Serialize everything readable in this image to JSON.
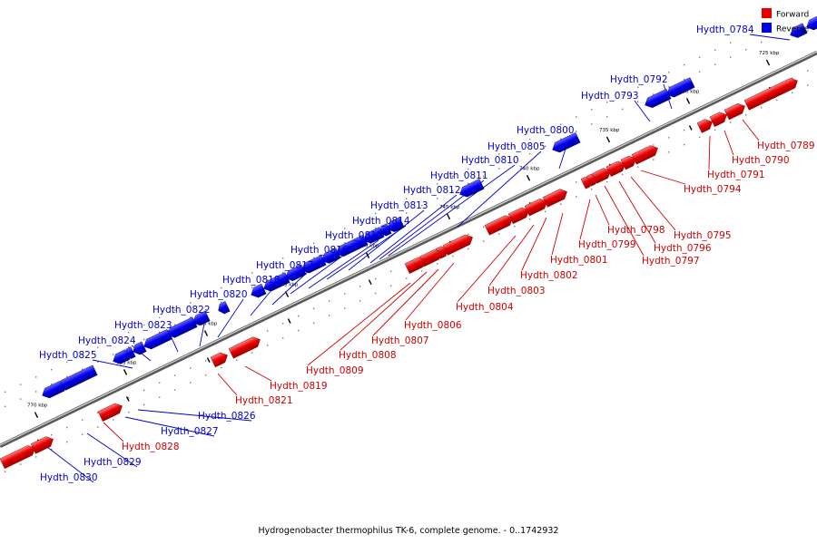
{
  "caption": "Hydrogenobacter thermophilus TK-6, complete genome. - 0..1742932",
  "legend": {
    "forward": {
      "label": "Forward",
      "color": "#e60000"
    },
    "reverse": {
      "label": "Reverse",
      "color": "#0000e6"
    }
  },
  "colors": {
    "forward_label": "#cc0000",
    "reverse_label": "#0000cc",
    "backbone": "#8a8a8a"
  },
  "ticks": [
    "725 kbp",
    "730 kbp",
    "735 kbp",
    "740 kbp",
    "745 kbp",
    "750 kbp",
    "755 kbp",
    "760 kbp",
    "765 kbp",
    "770 kbp"
  ],
  "genes": [
    {
      "id": "Hydth_0784",
      "strand": "reverse"
    },
    {
      "id": "Hydth_0789",
      "strand": "forward"
    },
    {
      "id": "Hydth_0790",
      "strand": "forward"
    },
    {
      "id": "Hydth_0791",
      "strand": "forward"
    },
    {
      "id": "Hydth_0792",
      "strand": "reverse"
    },
    {
      "id": "Hydth_0793",
      "strand": "reverse"
    },
    {
      "id": "Hydth_0794",
      "strand": "forward"
    },
    {
      "id": "Hydth_0795",
      "strand": "forward"
    },
    {
      "id": "Hydth_0796",
      "strand": "forward"
    },
    {
      "id": "Hydth_0797",
      "strand": "forward"
    },
    {
      "id": "Hydth_0798",
      "strand": "forward"
    },
    {
      "id": "Hydth_0799",
      "strand": "forward"
    },
    {
      "id": "Hydth_0800",
      "strand": "reverse"
    },
    {
      "id": "Hydth_0801",
      "strand": "forward"
    },
    {
      "id": "Hydth_0802",
      "strand": "forward"
    },
    {
      "id": "Hydth_0803",
      "strand": "forward"
    },
    {
      "id": "Hydth_0804",
      "strand": "forward"
    },
    {
      "id": "Hydth_0805",
      "strand": "reverse"
    },
    {
      "id": "Hydth_0806",
      "strand": "forward"
    },
    {
      "id": "Hydth_0807",
      "strand": "forward"
    },
    {
      "id": "Hydth_0808",
      "strand": "forward"
    },
    {
      "id": "Hydth_0809",
      "strand": "forward"
    },
    {
      "id": "Hydth_0810",
      "strand": "reverse"
    },
    {
      "id": "Hydth_0811",
      "strand": "reverse"
    },
    {
      "id": "Hydth_0812",
      "strand": "reverse"
    },
    {
      "id": "Hydth_0813",
      "strand": "reverse"
    },
    {
      "id": "Hydth_0814",
      "strand": "reverse"
    },
    {
      "id": "Hydth_0815",
      "strand": "reverse"
    },
    {
      "id": "Hydth_0816",
      "strand": "reverse"
    },
    {
      "id": "Hydth_0817",
      "strand": "reverse"
    },
    {
      "id": "Hydth_0818",
      "strand": "reverse"
    },
    {
      "id": "Hydth_0819",
      "strand": "forward"
    },
    {
      "id": "Hydth_0820",
      "strand": "reverse"
    },
    {
      "id": "Hydth_0821",
      "strand": "forward"
    },
    {
      "id": "Hydth_0822",
      "strand": "reverse"
    },
    {
      "id": "Hydth_0823",
      "strand": "reverse"
    },
    {
      "id": "Hydth_0824",
      "strand": "reverse"
    },
    {
      "id": "Hydth_0825",
      "strand": "reverse"
    },
    {
      "id": "Hydth_0826",
      "strand": "reverse"
    },
    {
      "id": "Hydth_0827",
      "strand": "reverse"
    },
    {
      "id": "Hydth_0828",
      "strand": "forward"
    },
    {
      "id": "Hydth_0829",
      "strand": "reverse"
    },
    {
      "id": "Hydth_0830",
      "strand": "reverse"
    }
  ]
}
